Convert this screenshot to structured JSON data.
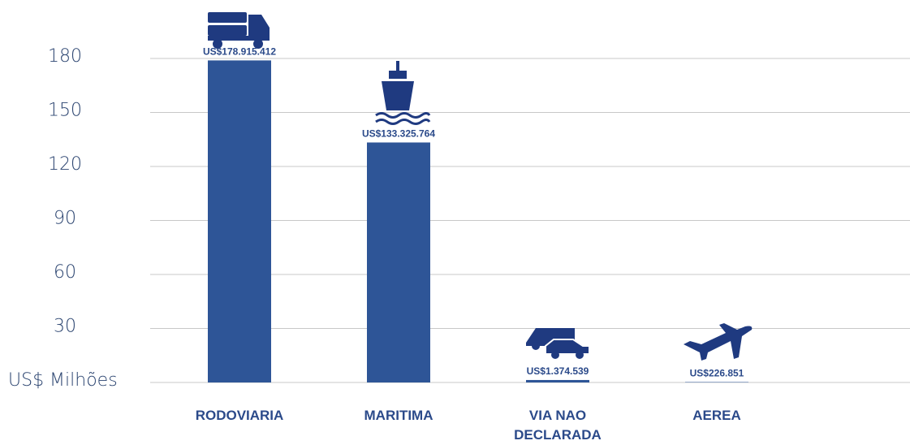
{
  "chart_data": {
    "type": "bar",
    "categories": [
      "RODOVIARIA",
      "MARITIMA",
      "VIA NAO DECLARADA",
      "AEREA"
    ],
    "values": [
      178.915412,
      133.325764,
      1.374539,
      0.226851
    ],
    "value_labels": [
      "US$178.915.412",
      "US$133.325.764",
      "US$1.374.539",
      "US$226.851"
    ],
    "color": "#2e5597",
    "ylim": [
      0,
      180
    ],
    "yticks": [
      {
        "value": 0,
        "label": "US$ Milhões"
      },
      30,
      60,
      90,
      120,
      150,
      180
    ],
    "grid": true
  }
}
